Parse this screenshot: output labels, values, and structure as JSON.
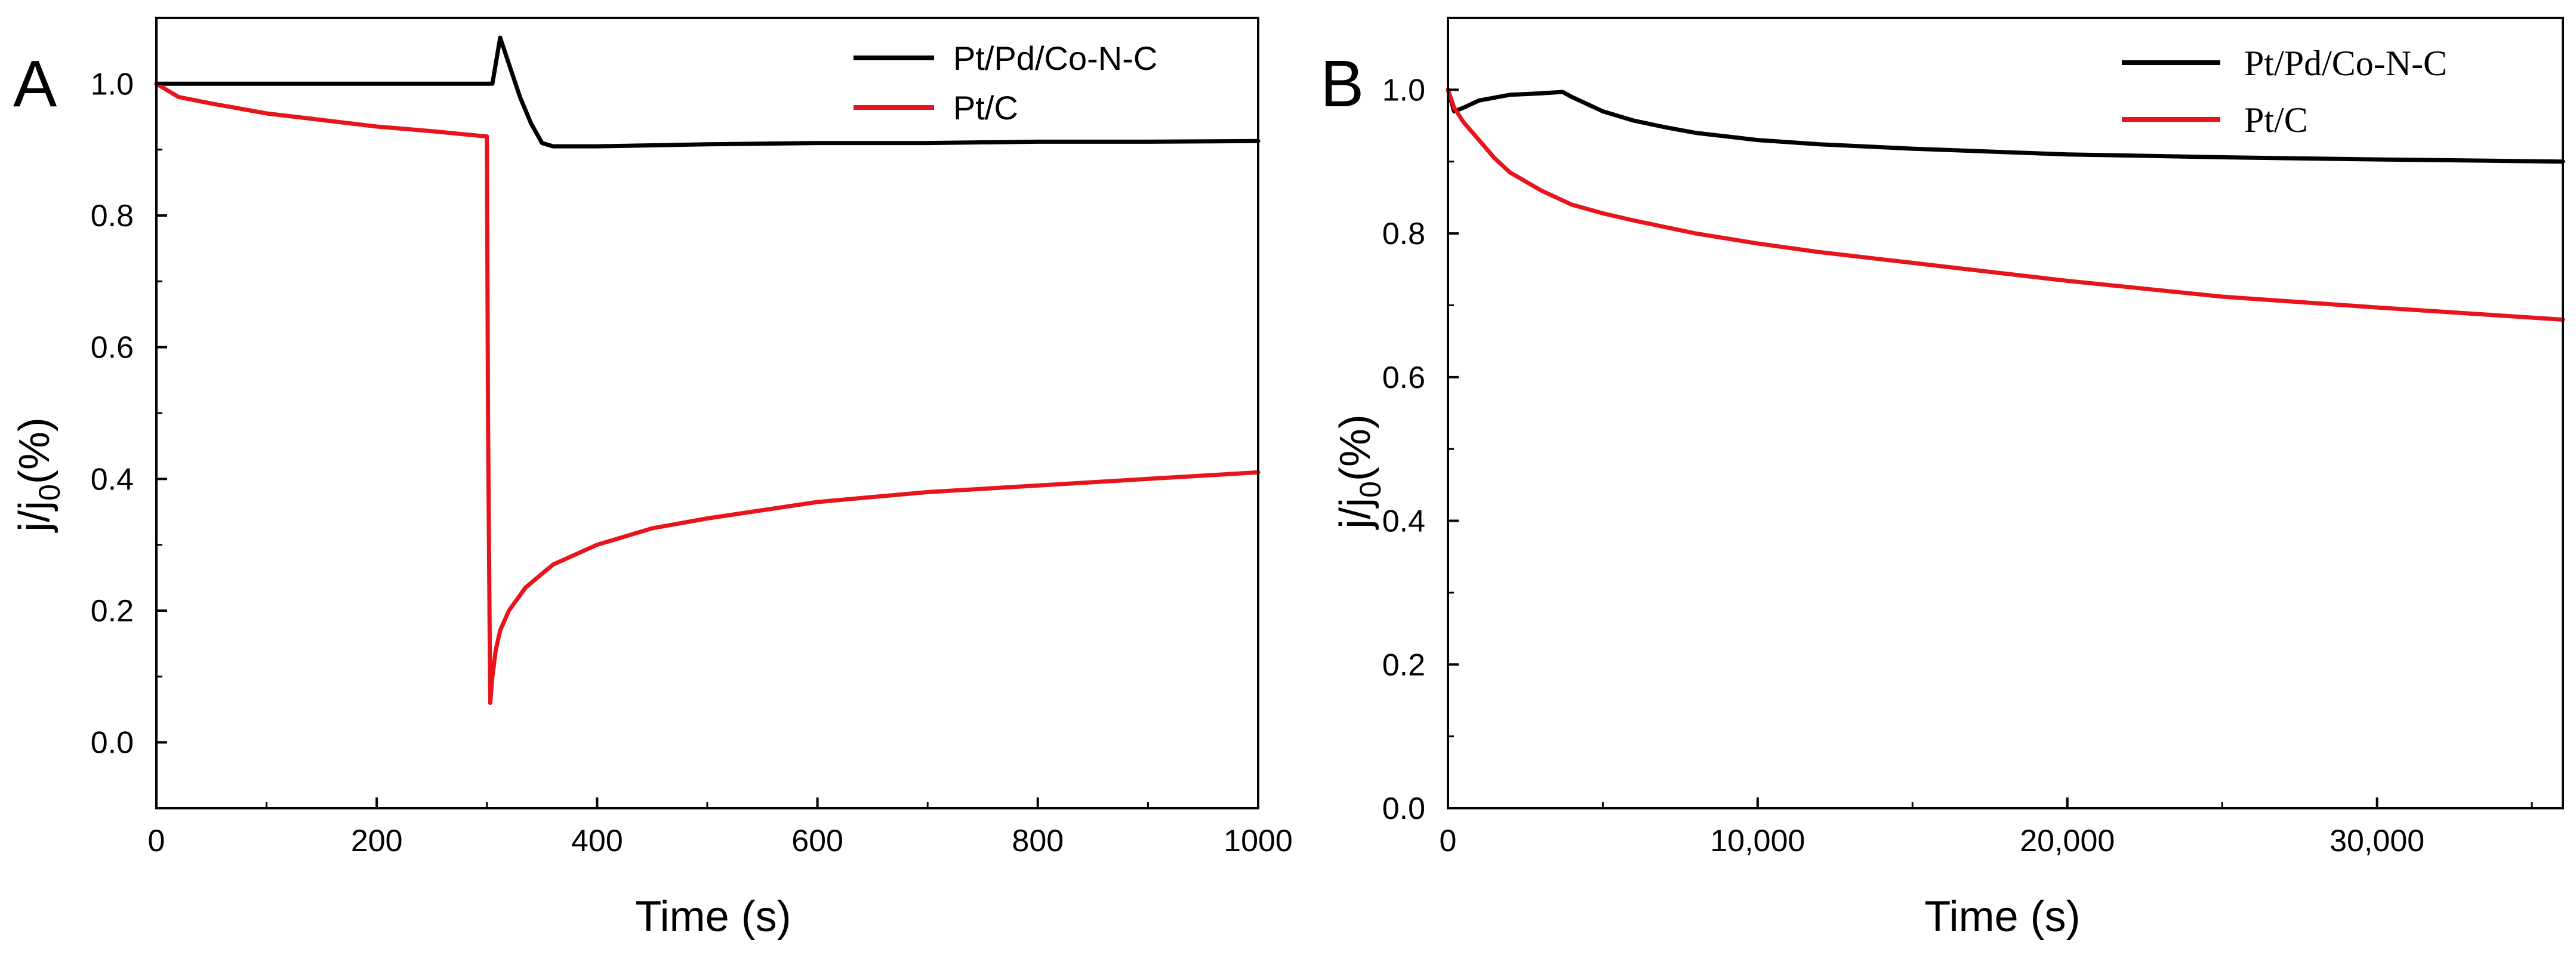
{
  "chart_data": [
    {
      "type": "line",
      "panel_label": "A",
      "xlabel": "Time (s)",
      "ylabel_main": "j/j",
      "ylabel_sub": "0",
      "ylabel_tail": "(%)",
      "xlim": [
        0,
        1000
      ],
      "ylim": [
        -0.1,
        1.1
      ],
      "xticks": [
        0,
        200,
        400,
        600,
        800,
        1000
      ],
      "xtick_labels": [
        "0",
        "200",
        "400",
        "600",
        "800",
        "1000"
      ],
      "yticks": [
        0.0,
        0.2,
        0.4,
        0.6,
        0.8,
        1.0
      ],
      "ytick_labels": [
        "0.0",
        "0.2",
        "0.4",
        "0.6",
        "0.8",
        "1.0"
      ],
      "legend_position": "top-right",
      "series": [
        {
          "name": "Pt/Pd/Co-N-C",
          "color": "#000000",
          "x": [
            0,
            100,
            200,
            280,
            300,
            305,
            312,
            320,
            330,
            340,
            350,
            360,
            370,
            400,
            500,
            600,
            700,
            800,
            900,
            1000
          ],
          "y": [
            1.0,
            1.0,
            1.0,
            1.0,
            1.0,
            1.0,
            1.07,
            1.03,
            0.98,
            0.94,
            0.91,
            0.905,
            0.905,
            0.905,
            0.908,
            0.91,
            0.91,
            0.912,
            0.912,
            0.913
          ]
        },
        {
          "name": "Pt/C",
          "color": "#e8141c",
          "x": [
            0,
            20,
            50,
            100,
            150,
            200,
            250,
            300,
            301,
            303,
            305,
            308,
            312,
            320,
            335,
            360,
            400,
            450,
            500,
            600,
            700,
            800,
            900,
            1000
          ],
          "y": [
            1.0,
            0.98,
            0.97,
            0.955,
            0.945,
            0.935,
            0.928,
            0.92,
            0.5,
            0.06,
            0.1,
            0.14,
            0.17,
            0.2,
            0.235,
            0.27,
            0.3,
            0.325,
            0.34,
            0.365,
            0.38,
            0.39,
            0.4,
            0.41
          ]
        }
      ]
    },
    {
      "type": "line",
      "panel_label": "B",
      "xlabel": "Time (s)",
      "ylabel_main": "j/j",
      "ylabel_sub": "0",
      "ylabel_tail": "(%)",
      "xlim": [
        0,
        36000
      ],
      "ylim": [
        0.0,
        1.1
      ],
      "xticks": [
        0,
        10000,
        20000,
        30000
      ],
      "xtick_labels": [
        "0",
        "10,000",
        "20,000",
        "30,000"
      ],
      "yticks": [
        0.0,
        0.2,
        0.4,
        0.6,
        0.8,
        1.0
      ],
      "ytick_labels": [
        "0.0",
        "0.2",
        "0.4",
        "0.6",
        "0.8",
        "1.0"
      ],
      "legend_position": "top-right",
      "series": [
        {
          "name": "Pt/Pd/Co-N-C",
          "color": "#000000",
          "x": [
            0,
            200,
            500,
            1000,
            2000,
            3000,
            3700,
            4000,
            4500,
            5000,
            6000,
            7000,
            8000,
            10000,
            12000,
            15000,
            20000,
            25000,
            30000,
            36000
          ],
          "y": [
            1.0,
            0.97,
            0.975,
            0.985,
            0.993,
            0.995,
            0.997,
            0.99,
            0.98,
            0.97,
            0.957,
            0.948,
            0.94,
            0.93,
            0.924,
            0.918,
            0.91,
            0.906,
            0.903,
            0.9
          ]
        },
        {
          "name": "Pt/C",
          "color": "#e8141c",
          "x": [
            0,
            200,
            500,
            1000,
            1500,
            2000,
            3000,
            4000,
            5000,
            6000,
            8000,
            10000,
            12000,
            15000,
            20000,
            25000,
            30000,
            36000
          ],
          "y": [
            1.0,
            0.975,
            0.955,
            0.93,
            0.905,
            0.885,
            0.86,
            0.84,
            0.828,
            0.818,
            0.8,
            0.786,
            0.774,
            0.759,
            0.734,
            0.712,
            0.697,
            0.68
          ]
        }
      ]
    }
  ]
}
